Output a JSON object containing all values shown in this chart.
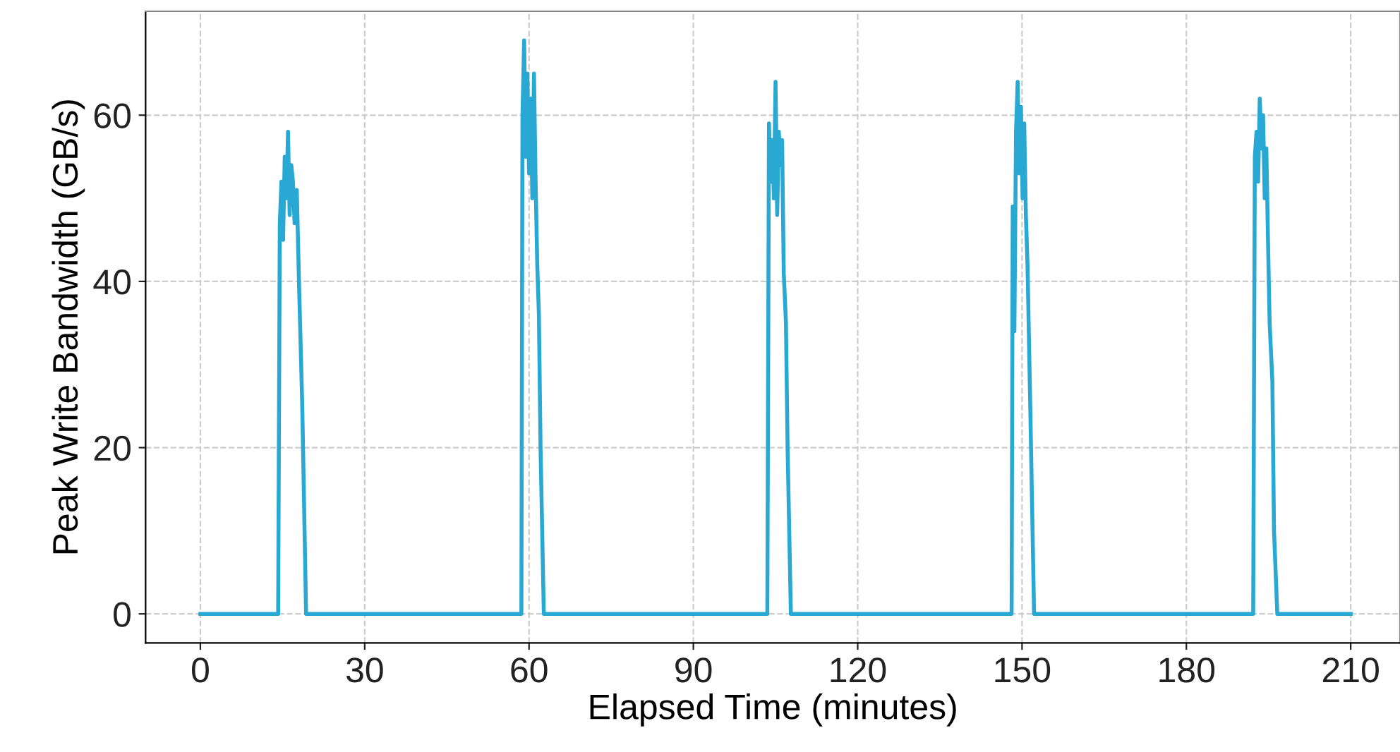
{
  "chart_data": {
    "type": "line",
    "xlabel": "Elapsed Time (minutes)",
    "ylabel": "Peak Write Bandwidth (GB/s)",
    "xlim": [
      -10,
      219
    ],
    "ylim": [
      -3.5,
      72.5
    ],
    "xticks": [
      0,
      30,
      60,
      90,
      120,
      150,
      180,
      210
    ],
    "yticks": [
      0,
      20,
      40,
      60
    ],
    "grid": true,
    "marker": "none",
    "line_style": "solid",
    "series": [
      {
        "color": "#29a8d4",
        "x": [
          0,
          14.2,
          14.5,
          14.8,
          15.1,
          15.4,
          15.7,
          16.0,
          16.3,
          16.6,
          16.9,
          17.2,
          17.6,
          18.0,
          18.6,
          19.3,
          58.6,
          58.8,
          59.1,
          59.4,
          59.7,
          60.0,
          60.3,
          60.6,
          60.9,
          61.2,
          61.5,
          61.8,
          62.1,
          62.7,
          103.5,
          103.8,
          104.1,
          104.4,
          104.7,
          105.0,
          105.3,
          105.6,
          105.9,
          106.2,
          106.5,
          106.9,
          107.2,
          107.8,
          148.1,
          148.3,
          148.6,
          148.9,
          149.2,
          149.5,
          149.8,
          150.1,
          150.4,
          150.7,
          151.0,
          151.5,
          152.2,
          192.2,
          192.5,
          192.8,
          193.1,
          193.4,
          193.7,
          194.0,
          194.3,
          194.6,
          194.9,
          195.2,
          195.7,
          196.0,
          196.6,
          210
        ],
        "values": [
          0,
          0,
          47,
          52,
          45,
          55,
          50,
          58,
          48,
          54,
          52,
          47,
          51,
          40,
          25,
          0,
          0,
          60,
          69,
          55,
          65,
          53,
          62,
          50,
          65,
          52,
          42,
          36,
          20,
          0,
          0,
          59,
          52,
          57,
          50,
          64,
          48,
          58,
          54,
          57,
          41,
          35,
          20,
          0,
          0,
          49,
          34,
          58,
          64,
          53,
          61,
          50,
          59,
          48,
          42,
          25,
          0,
          0,
          55,
          58,
          52,
          62,
          56,
          60,
          50,
          56,
          45,
          35,
          28,
          10,
          0,
          0
        ]
      }
    ]
  }
}
